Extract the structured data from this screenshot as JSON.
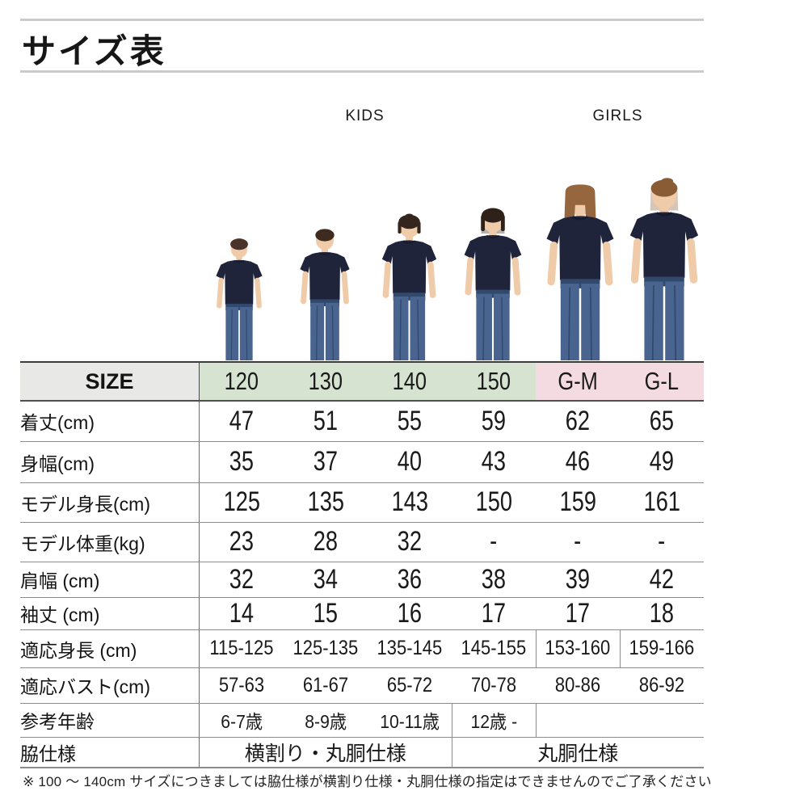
{
  "title": {
    "text": "サイズ表"
  },
  "groups": {
    "kids": {
      "label": "KIDS",
      "color": "#d6e3d0"
    },
    "girls": {
      "label": "GIRLS",
      "color": "#f4dbe1"
    }
  },
  "table": {
    "size_header": "SIZE",
    "columns": [
      {
        "label": "120",
        "group": "kids"
      },
      {
        "label": "130",
        "group": "kids"
      },
      {
        "label": "140",
        "group": "kids"
      },
      {
        "label": "150",
        "group": "kids"
      },
      {
        "label": "G-M",
        "group": "girls"
      },
      {
        "label": "G-L",
        "group": "girls"
      }
    ],
    "rows": [
      {
        "label": "着丈(cm)",
        "style": "big",
        "values": [
          "47",
          "51",
          "55",
          "59",
          "62",
          "65"
        ]
      },
      {
        "label": "身幅(cm)",
        "style": "big",
        "values": [
          "35",
          "37",
          "40",
          "43",
          "46",
          "49"
        ]
      },
      {
        "label": "モデル身長(cm)",
        "style": "big",
        "values": [
          "125",
          "135",
          "143",
          "150",
          "159",
          "161"
        ]
      },
      {
        "label": "モデル体重(kg)",
        "style": "big",
        "values": [
          "23",
          "28",
          "32",
          "-",
          "-",
          "-"
        ]
      },
      {
        "label": "肩幅 (cm)",
        "style": "big",
        "values": [
          "32",
          "34",
          "36",
          "38",
          "39",
          "42"
        ]
      },
      {
        "label": "袖丈 (cm)",
        "style": "big",
        "values": [
          "14",
          "15",
          "16",
          "17",
          "17",
          "18"
        ]
      },
      {
        "label": "適応身長 (cm)",
        "style": "med",
        "dividers": [
          4,
          5
        ],
        "values": [
          "115-125",
          "125-135",
          "135-145",
          "145-155",
          "153-160",
          "159-166"
        ]
      },
      {
        "label": "適応バスト(cm)",
        "style": "med",
        "values": [
          "57-63",
          "61-67",
          "65-72",
          "70-78",
          "80-86",
          "86-92"
        ]
      },
      {
        "label": "参考年齢",
        "style": "small",
        "dividers": [
          3,
          4
        ],
        "values": [
          "6-7歳",
          "8-9歳",
          "10-11歳",
          "12歳 -",
          "",
          ""
        ]
      },
      {
        "label": "脇仕様",
        "style": "jp",
        "spans": [
          {
            "text": "横割り・丸胴仕様",
            "cols": 3
          },
          {
            "text": "丸胴仕様",
            "cols": 3
          }
        ]
      }
    ]
  },
  "models": [
    {
      "column": "120",
      "person": "boy"
    },
    {
      "column": "130",
      "person": "boy"
    },
    {
      "column": "140",
      "person": "girl"
    },
    {
      "column": "150",
      "person": "girl"
    },
    {
      "column": "G-M",
      "person": "woman"
    },
    {
      "column": "G-L",
      "person": "woman"
    }
  ],
  "footnote": "※ 100 ～ 140cm サイズにつきましては脇仕様が横割り仕様・丸胴仕様の指定はできませんのでご了承ください"
}
